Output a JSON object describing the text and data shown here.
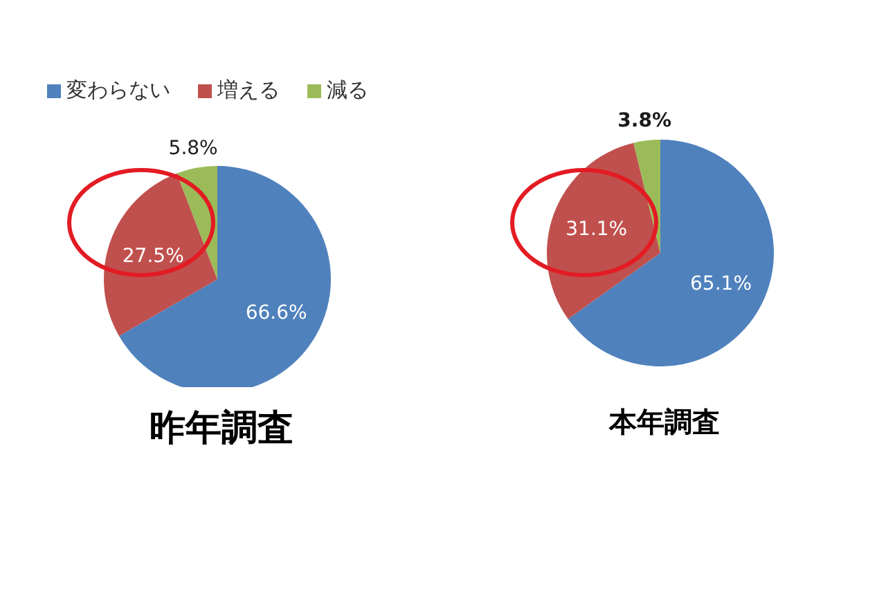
{
  "chart_data": [
    {
      "type": "pie",
      "title": "昨年調査",
      "categories": [
        "変わらない",
        "増える",
        "減る"
      ],
      "values": [
        66.6,
        27.5,
        5.8
      ],
      "colors": [
        "#4f81bd",
        "#c0504d",
        "#9bbb59"
      ],
      "value_labels": [
        "66.6%",
        "27.5%",
        "5.8%"
      ],
      "legend": "top"
    },
    {
      "type": "pie",
      "title": "本年調査",
      "categories": [
        null,
        null,
        null
      ],
      "values": [
        65.1,
        31.1,
        3.8
      ],
      "colors": [
        "#4f81bd",
        "#c0504d",
        "#9bbb59"
      ],
      "value_labels": [
        "65.1%",
        "31.1%",
        "3.8%"
      ],
      "legend": false
    }
  ]
}
